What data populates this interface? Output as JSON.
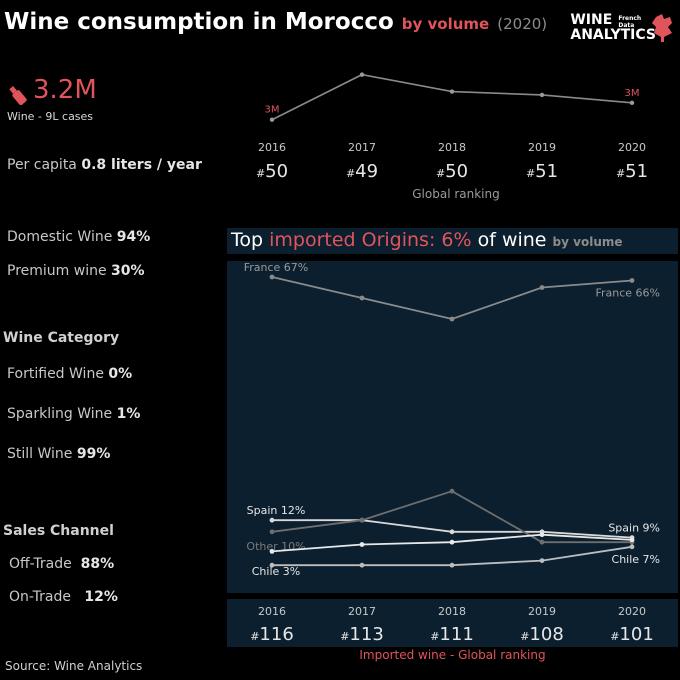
{
  "header": {
    "title_main": "Wine consumption in Morocco",
    "title_measure": "by volume",
    "title_year": "(2020)",
    "logo_line1": "WINE",
    "logo_line2": "ANALYTICS",
    "logo_sub": "French Data"
  },
  "kpi": {
    "volume": "3.2M",
    "volume_label": "Wine - 9L cases",
    "per_capita_label": "Per capita",
    "per_capita_value": "0.8 liters / year"
  },
  "shares": {
    "domestic_label": "Domestic Wine",
    "domestic_value": "94%",
    "premium_label": "Premium wine",
    "premium_value": "30%"
  },
  "category": {
    "heading": "Wine Category",
    "fortified_label": "Fortified Wine",
    "fortified_value": "0%",
    "sparkling_label": "Sparkling Wine",
    "sparkling_value": "1%",
    "still_label": "Still Wine",
    "still_value": "99%"
  },
  "channel": {
    "heading": "Sales Channel",
    "off_label": "Off-Trade",
    "off_value": "88%",
    "on_label": "On-Trade",
    "on_value": "12%"
  },
  "imports": {
    "title_a": "Top",
    "title_b": "imported Origins: 6%",
    "title_c": "of wine",
    "title_d": "by volume",
    "ranking_caption": "Imported wine - Global ranking"
  },
  "footer": {
    "source": "Source: Wine Analytics"
  },
  "colors": {
    "accent": "#e0545c",
    "panel": "#0b1f2e",
    "line_gray": "#8a8a8a",
    "line_light": "#d9d9d9"
  },
  "chart_data": [
    {
      "type": "line",
      "x": [
        "2016",
        "2017",
        "2018",
        "2019",
        "2020"
      ],
      "series": [
        {
          "values": [
            3.0,
            3.4,
            3.25,
            3.22,
            3.15
          ]
        }
      ],
      "point_labels": {
        "2016": "3M",
        "2020": "3M"
      },
      "ranks": [
        "50",
        "49",
        "50",
        "51",
        "51"
      ],
      "rank_prefix": "#",
      "caption": "Global ranking"
    },
    {
      "type": "line",
      "x": [
        "2016",
        "2017",
        "2018",
        "2019",
        "2020"
      ],
      "ylim": [
        0,
        70
      ],
      "series": [
        {
          "name": "France",
          "values": [
            67,
            61,
            55,
            64,
            66
          ],
          "start_label": "France 67%",
          "end_label": "France 66%",
          "color": "#8a8a8a"
        },
        {
          "name": "Spain",
          "values": [
            12,
            12,
            10,
            10,
            9
          ],
          "start_label": "Spain 12%",
          "end_label": "Spain 9%",
          "color": "#d9d9d9"
        },
        {
          "name": "Other",
          "values": [
            10,
            12,
            17,
            8,
            8
          ],
          "start_label": "Other 10%",
          "color": "#6e6e6e"
        },
        {
          "name": "Chile",
          "values": [
            3,
            3,
            3,
            4,
            7
          ],
          "start_label": "Chile 3%",
          "end_label": "Chile 7%",
          "color": "#bdbdbd"
        },
        {
          "values": [
            6,
            7.5,
            8,
            9.5,
            8.5
          ],
          "color": "#e8e8e8"
        }
      ],
      "ranks": [
        "116",
        "113",
        "111",
        "108",
        "101"
      ],
      "rank_prefix": "#"
    }
  ]
}
